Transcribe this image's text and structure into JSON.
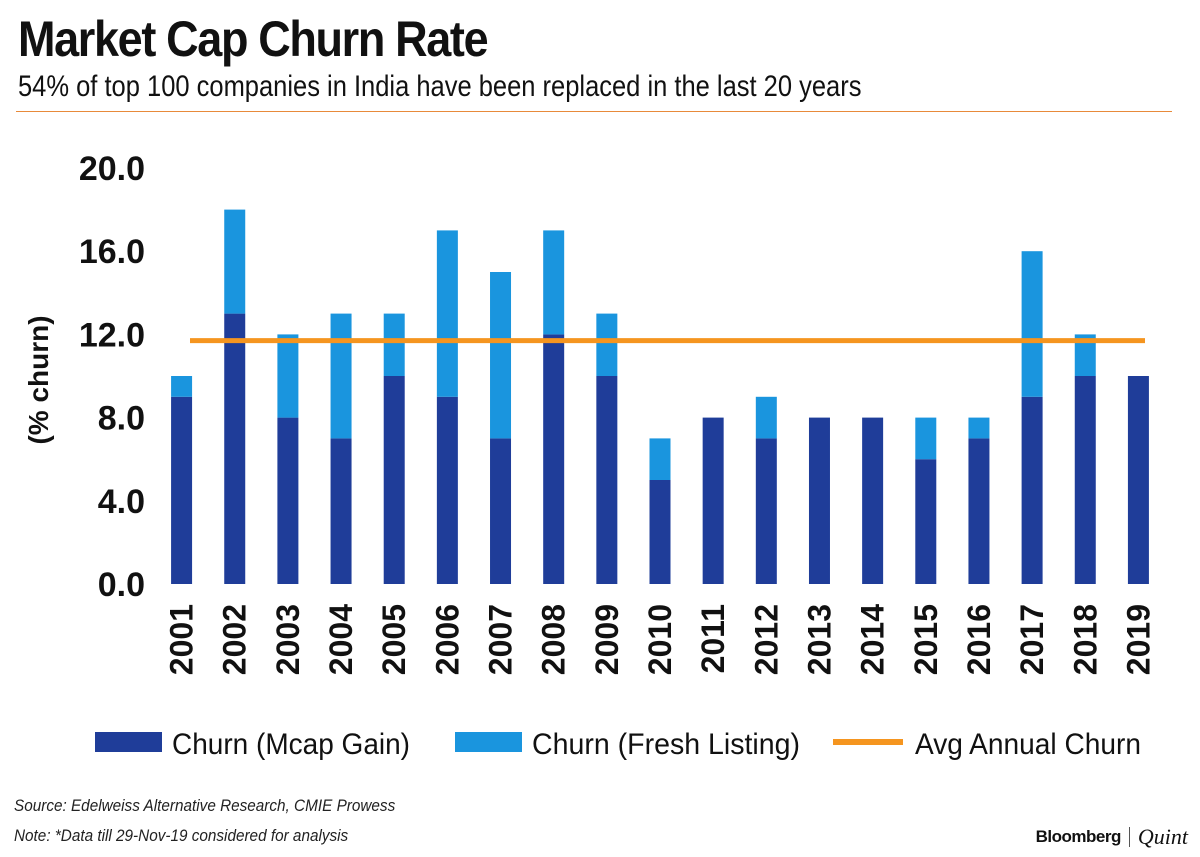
{
  "header": {
    "title": "Market Cap Churn Rate",
    "subtitle": "54% of top 100 companies in India have been replaced in the last 20 years"
  },
  "footer": {
    "source": "Source: Edelweiss Alternative Research, CMIE Prowess",
    "note": "Note: *Data till 29-Nov-19 considered for analysis",
    "logo_left": "Bloomberg",
    "logo_right": "Quint"
  },
  "colors": {
    "mcap_gain": "#1f3d99",
    "fresh_listing": "#1a95de",
    "avg_line": "#f5951f"
  },
  "chart_data": {
    "type": "bar",
    "stacked": true,
    "title": "Market Cap Churn Rate",
    "xlabel": "",
    "ylabel": "(% churn)",
    "ylim": [
      0,
      20
    ],
    "yticks": [
      "0.0",
      "4.0",
      "8.0",
      "12.0",
      "16.0",
      "20.0"
    ],
    "categories": [
      "2001",
      "2002",
      "2003",
      "2004",
      "2005",
      "2006",
      "2007",
      "2008",
      "2009",
      "2010",
      "2011",
      "2012",
      "2013",
      "2014",
      "2015",
      "2016",
      "2017",
      "2018",
      "2019"
    ],
    "series": [
      {
        "name": "Churn (Mcap Gain)",
        "values": [
          9,
          13,
          8,
          7,
          10,
          9,
          7,
          12,
          10,
          5,
          8,
          7,
          8,
          8,
          6,
          7,
          9,
          10,
          10
        ]
      },
      {
        "name": "Churn (Fresh Listing)",
        "values": [
          1,
          5,
          4,
          6,
          3,
          8,
          8,
          5,
          3,
          2,
          0,
          2,
          0,
          0,
          2,
          1,
          7,
          2,
          0
        ]
      }
    ],
    "reference_line": {
      "name": "Avg Annual Churn",
      "value": 11.7
    },
    "legend_position": "bottom"
  }
}
